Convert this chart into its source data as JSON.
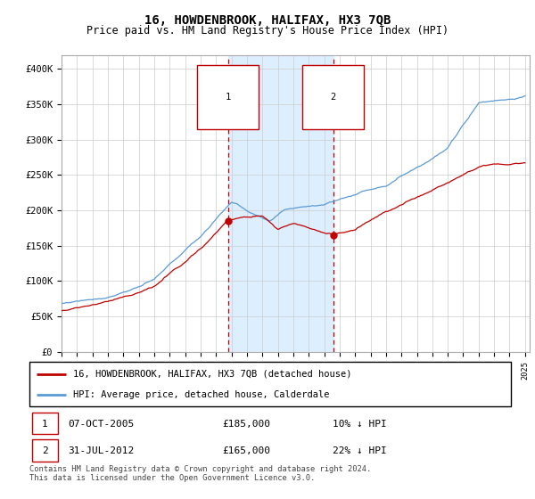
{
  "title": "16, HOWDENBROOK, HALIFAX, HX3 7QB",
  "subtitle": "Price paid vs. HM Land Registry's House Price Index (HPI)",
  "ylim": [
    0,
    420000
  ],
  "yticks": [
    0,
    50000,
    100000,
    150000,
    200000,
    250000,
    300000,
    350000,
    400000
  ],
  "ytick_labels": [
    "£0",
    "£50K",
    "£100K",
    "£150K",
    "£200K",
    "£250K",
    "£300K",
    "£350K",
    "£400K"
  ],
  "hpi_color": "#5b9bd5",
  "price_color": "#c00000",
  "vline_color": "#c00000",
  "shade_color": "#ddeeff",
  "marker1_year": 2005.77,
  "marker1_price": 185000,
  "marker2_year": 2012.58,
  "marker2_price": 165000,
  "marker1_label": "1",
  "marker2_label": "2",
  "legend_line1": "16, HOWDENBROOK, HALIFAX, HX3 7QB (detached house)",
  "legend_line2": "HPI: Average price, detached house, Calderdale",
  "table_row1": [
    "1",
    "07-OCT-2005",
    "£185,000",
    "10% ↓ HPI"
  ],
  "table_row2": [
    "2",
    "31-JUL-2012",
    "£165,000",
    "22% ↓ HPI"
  ],
  "footnote": "Contains HM Land Registry data © Crown copyright and database right 2024.\nThis data is licensed under the Open Government Licence v3.0.",
  "title_fontsize": 10,
  "subtitle_fontsize": 8.5,
  "tick_fontsize": 7.5
}
